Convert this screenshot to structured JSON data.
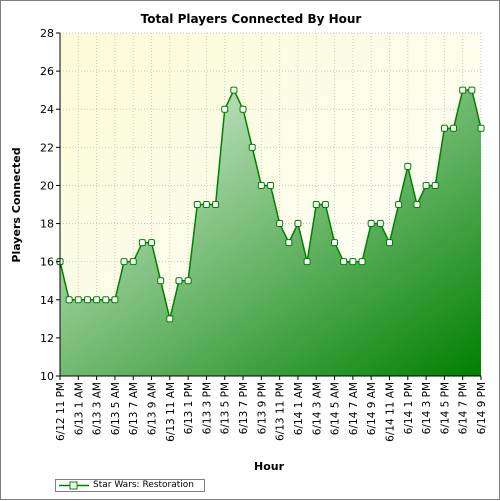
{
  "chart_data": {
    "type": "area",
    "title": "Total Players Connected By Hour",
    "xlabel": "Hour",
    "ylabel": "Players Connected",
    "ylim": [
      10,
      28
    ],
    "yticks": [
      10,
      12,
      14,
      16,
      18,
      20,
      22,
      24,
      26,
      28
    ],
    "grid": true,
    "legend_position": "bottom-left",
    "x_tick_labels": [
      "6/12 11 PM",
      "6/13 1 AM",
      "6/13 3 AM",
      "6/13 5 AM",
      "6/13 7 AM",
      "6/13 9 AM",
      "6/13 11 AM",
      "6/13 1 PM",
      "6/13 3 PM",
      "6/13 5 PM",
      "6/13 7 PM",
      "6/13 9 PM",
      "6/13 11 PM",
      "6/14 1 AM",
      "6/14 3 AM",
      "6/14 5 AM",
      "6/14 7 AM",
      "6/14 9 AM",
      "6/14 11 AM",
      "6/14 1 PM",
      "6/14 3 PM",
      "6/14 5 PM",
      "6/14 7 PM",
      "6/14 9 PM"
    ],
    "series": [
      {
        "name": "Star Wars: Restoration",
        "color": "#008000",
        "values": [
          16,
          14,
          14,
          14,
          14,
          14,
          14,
          16,
          16,
          17,
          17,
          15,
          13,
          15,
          15,
          19,
          19,
          19,
          24,
          25,
          24,
          22,
          20,
          20,
          18,
          17,
          18,
          16,
          19,
          19,
          17,
          16,
          16,
          16,
          18,
          18,
          17,
          19,
          21,
          19,
          20,
          20,
          23,
          23,
          25,
          25,
          23
        ]
      }
    ]
  }
}
